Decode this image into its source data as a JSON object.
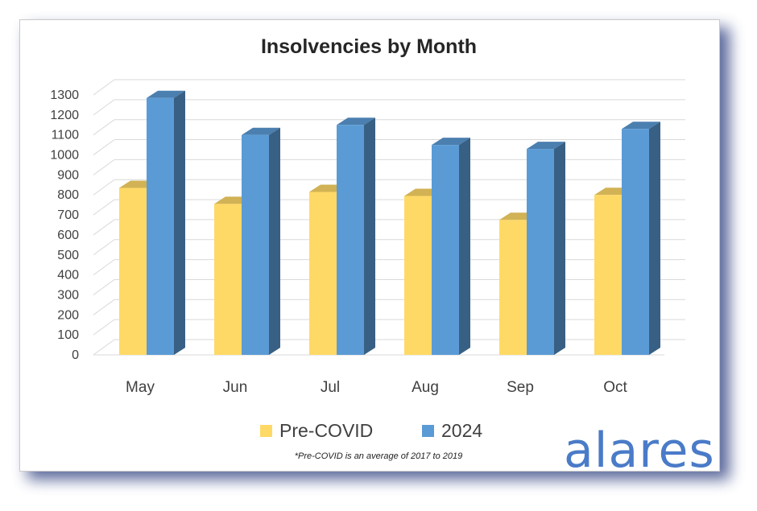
{
  "chart_data": {
    "type": "bar",
    "title": "Insolvencies by Month",
    "categories": [
      "May",
      "Jun",
      "Jul",
      "Aug",
      "Sep",
      "Oct"
    ],
    "series": [
      {
        "name": "Pre-COVID",
        "color": "#ffd966",
        "values": [
          835,
          755,
          815,
          795,
          675,
          800
        ]
      },
      {
        "name": "2024",
        "color": "#5b9bd5",
        "values": [
          1285,
          1100,
          1150,
          1050,
          1030,
          1130
        ]
      }
    ],
    "yticks": [
      "0",
      "100",
      "200",
      "300",
      "400",
      "500",
      "600",
      "700",
      "800",
      "900",
      "1000",
      "1100",
      "1200",
      "1300"
    ],
    "ylim": [
      0,
      1300
    ],
    "grid": true,
    "legend_position": "bottom",
    "footnote": "*Pre-COVID is an average of 2017 to 2019"
  },
  "branding": {
    "logo_text": "alares",
    "logo_color": "#4a7bc8"
  }
}
